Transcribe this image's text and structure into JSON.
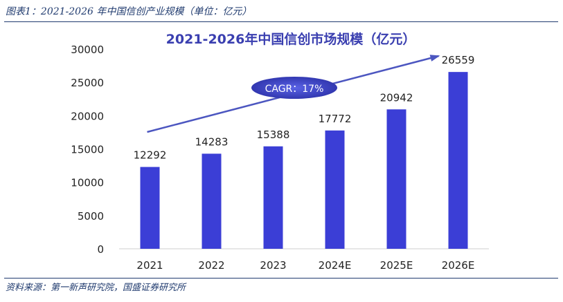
{
  "caption": "图表1：2021-2026 年中国信创产业规模（单位：亿元）",
  "source": "资料来源：第一新声研究院，国盛证券研究所",
  "chart_data": {
    "type": "bar",
    "title": "2021-2026年中国信创市场规模（亿元）",
    "categories": [
      "2021",
      "2022",
      "2023",
      "2024E",
      "2025E",
      "2026E"
    ],
    "values": [
      12292,
      14283,
      15388,
      17772,
      20942,
      26559
    ],
    "yticks": [
      "0",
      "5000",
      "10000",
      "15000",
      "20000",
      "25000",
      "30000"
    ],
    "ylim": [
      0,
      30000
    ],
    "annotation": "CAGR：17%",
    "bar_color": "#3b3ed6",
    "trend_color": "#4c56c0",
    "grid": false,
    "legend": "none"
  }
}
